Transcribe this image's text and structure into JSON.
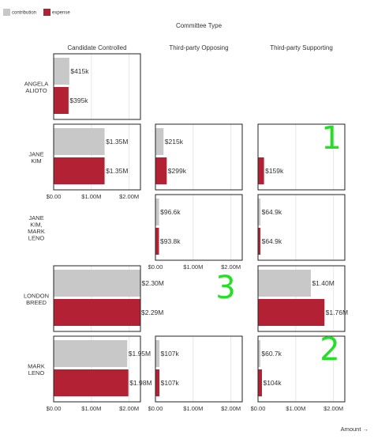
{
  "chart_data": {
    "type": "bar",
    "orientation": "horizontal",
    "facet_column_title": "Committee Type",
    "columns": [
      "Candidate Controlled",
      "Third-party Opposing",
      "Third-party Supporting"
    ],
    "rows": [
      "ANGELA ALIOTO",
      "JANE KIM",
      "JANE KIM, MARK LENO",
      "LONDON BREED",
      "MARK LENO"
    ],
    "row_label_lines": [
      [
        "ANGELA",
        "ALIOTO"
      ],
      [
        "JANE",
        "KIM"
      ],
      [
        "JANE",
        "KIM,",
        "MARK",
        "LENO"
      ],
      [
        "LONDON",
        "BREED"
      ],
      [
        "MARK",
        "LENO"
      ]
    ],
    "x_label": "Amount →",
    "x_ticks": [
      "$0.00",
      "$1.00M",
      "$2.00M"
    ],
    "x_tick_values": [
      0,
      1000000,
      2000000
    ],
    "xlim": [
      0,
      2300000
    ],
    "series": [
      {
        "name": "contribution",
        "color": "#c8c8c8"
      },
      {
        "name": "expense",
        "color": "#b22234"
      }
    ],
    "cells": [
      {
        "row": "ANGELA ALIOTO",
        "column": "Candidate Controlled",
        "contribution": 415000,
        "contribution_label": "$415k",
        "expense": 395000,
        "expense_label": "$395k"
      },
      {
        "row": "JANE KIM",
        "column": "Candidate Controlled",
        "contribution": 1350000,
        "contribution_label": "$1.35M",
        "expense": 1350000,
        "expense_label": "$1.35M"
      },
      {
        "row": "JANE KIM",
        "column": "Third-party Opposing",
        "contribution": 215000,
        "contribution_label": "$215k",
        "expense": 299000,
        "expense_label": "$299k"
      },
      {
        "row": "JANE KIM",
        "column": "Third-party Supporting",
        "contribution": null,
        "contribution_label": "",
        "expense": 159000,
        "expense_label": "$159k"
      },
      {
        "row": "JANE KIM, MARK LENO",
        "column": "Third-party Opposing",
        "contribution": 96600,
        "contribution_label": "$96.6k",
        "expense": 93800,
        "expense_label": "$93.8k"
      },
      {
        "row": "JANE KIM, MARK LENO",
        "column": "Third-party Supporting",
        "contribution": 64900,
        "contribution_label": "$64.9k",
        "expense": 64900,
        "expense_label": "$64.9k"
      },
      {
        "row": "LONDON BREED",
        "column": "Candidate Controlled",
        "contribution": 2300000,
        "contribution_label": "$2.30M",
        "expense": 2290000,
        "expense_label": "$2.29M"
      },
      {
        "row": "LONDON BREED",
        "column": "Third-party Supporting",
        "contribution": 1400000,
        "contribution_label": "$1.40M",
        "expense": 1760000,
        "expense_label": "$1.76M"
      },
      {
        "row": "MARK LENO",
        "column": "Candidate Controlled",
        "contribution": 1950000,
        "contribution_label": "$1.95M",
        "expense": 1980000,
        "expense_label": "$1.98M"
      },
      {
        "row": "MARK LENO",
        "column": "Third-party Opposing",
        "contribution": 107000,
        "contribution_label": "$107k",
        "expense": 107000,
        "expense_label": "$107k"
      },
      {
        "row": "MARK LENO",
        "column": "Third-party Supporting",
        "contribution": 60700,
        "contribution_label": "$60.7k",
        "expense": 104000,
        "expense_label": "$104k"
      }
    ],
    "tick_label_rows": [
      "JANE KIM",
      "JANE KIM, MARK LENO",
      "MARK LENO"
    ],
    "annotations": [
      {
        "text": "1",
        "row": "JANE KIM",
        "column": "Third-party Supporting"
      },
      {
        "text": "2",
        "row": "MARK LENO",
        "column": "Third-party Supporting"
      },
      {
        "text": "3",
        "row": "LONDON BREED",
        "column": "Third-party Opposing"
      }
    ],
    "grid": true,
    "legend_position": "top-left"
  }
}
